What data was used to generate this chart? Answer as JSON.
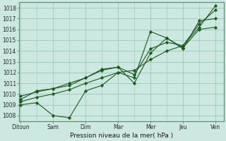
{
  "background_color": "#cce8e0",
  "plot_bg_color": "#cce8e0",
  "grid_color": "#99c8bc",
  "line_color": "#1a5c1a",
  "marker_color": "#1a5c1a",
  "xlabel": "Pression niveau de la mer( hPa )",
  "x_labels": [
    "Ditoun",
    "Sam",
    "Dim",
    "Mar",
    "Mer",
    "Jeu",
    "Ven"
  ],
  "x_positions": [
    0,
    1,
    2,
    3,
    4,
    5,
    6
  ],
  "xlim": [
    -0.05,
    6.25
  ],
  "ylim": [
    1007.5,
    1018.5
  ],
  "yticks": [
    1008,
    1009,
    1010,
    1011,
    1012,
    1013,
    1014,
    1015,
    1016,
    1017,
    1018
  ],
  "lines": [
    {
      "x": [
        0.0,
        0.5,
        1.0,
        1.5,
        2.0,
        2.5,
        3.0,
        3.5,
        4.0,
        4.5,
        5.0,
        5.5,
        6.0
      ],
      "y": [
        1009.3,
        1009.7,
        1010.0,
        1010.4,
        1011.0,
        1011.5,
        1012.0,
        1012.2,
        1013.2,
        1014.0,
        1014.5,
        1016.2,
        1018.2
      ]
    },
    {
      "x": [
        0.0,
        0.5,
        1.0,
        1.5,
        2.0,
        2.5,
        3.0,
        3.5,
        4.0,
        4.5,
        5.0,
        5.5,
        6.0
      ],
      "y": [
        1009.0,
        1009.2,
        1008.0,
        1007.8,
        1010.3,
        1010.8,
        1012.0,
        1011.5,
        1015.8,
        1015.2,
        1014.2,
        1016.8,
        1017.0
      ]
    },
    {
      "x": [
        0.0,
        0.5,
        1.0,
        1.5,
        2.0,
        2.5,
        3.0,
        3.5,
        4.0,
        4.5,
        5.0,
        5.5,
        6.0
      ],
      "y": [
        1009.5,
        1010.3,
        1010.5,
        1010.8,
        1011.5,
        1012.3,
        1012.5,
        1011.0,
        1013.8,
        1015.2,
        1014.3,
        1016.0,
        1016.2
      ]
    },
    {
      "x": [
        0.0,
        0.5,
        1.0,
        1.5,
        2.0,
        2.5,
        3.0,
        3.5,
        4.0,
        4.5,
        5.0,
        5.5,
        6.0
      ],
      "y": [
        1009.8,
        1010.2,
        1010.5,
        1011.0,
        1011.5,
        1012.2,
        1012.5,
        1011.8,
        1014.2,
        1014.8,
        1014.5,
        1016.5,
        1017.8
      ]
    }
  ]
}
